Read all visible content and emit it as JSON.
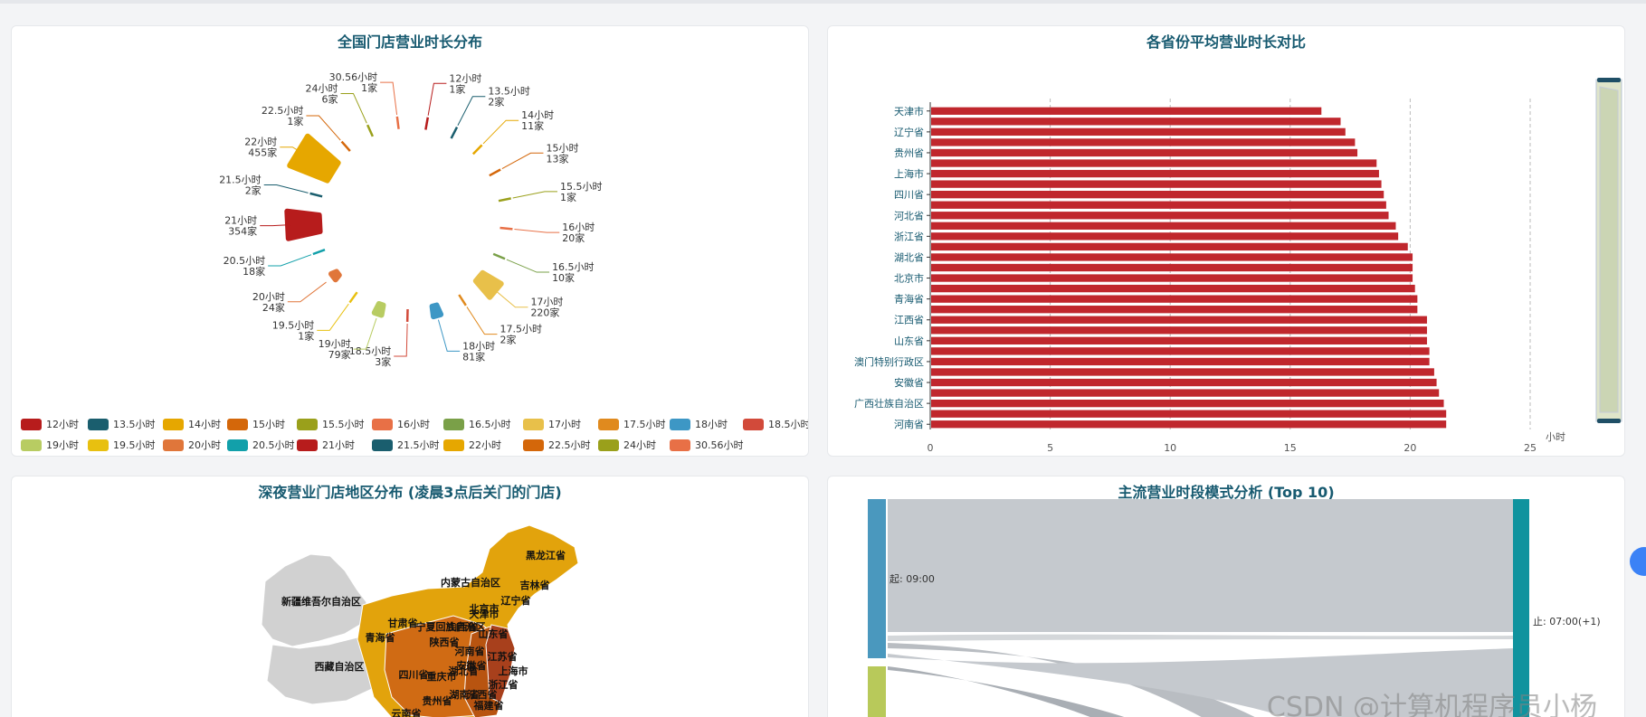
{
  "watermark": "CSDN @计算机程序员小杨",
  "charts": {
    "pie": {
      "title": "全国门店营业时长分布",
      "legend": [
        {
          "name": "12小时",
          "color": "#b71c1c"
        },
        {
          "name": "13.5小时",
          "color": "#1a5e6e"
        },
        {
          "name": "14小时",
          "color": "#e6a700"
        },
        {
          "name": "15小时",
          "color": "#d4670a"
        },
        {
          "name": "15.5小时",
          "color": "#9aa01b"
        },
        {
          "name": "16小时",
          "color": "#e87046"
        },
        {
          "name": "16.5小时",
          "color": "#7aa048"
        },
        {
          "name": "17小时",
          "color": "#e8c04a"
        },
        {
          "name": "17.5小时",
          "color": "#e08a1e"
        },
        {
          "name": "18小时",
          "color": "#3d97c5"
        },
        {
          "name": "18.5小时",
          "color": "#d24a3a"
        },
        {
          "name": "19小时",
          "color": "#b8cc62"
        },
        {
          "name": "19.5小时",
          "color": "#e8c010"
        },
        {
          "name": "20小时",
          "color": "#e0763a"
        },
        {
          "name": "20.5小时",
          "color": "#12a0aa"
        },
        {
          "name": "21小时",
          "color": "#b71c1c"
        },
        {
          "name": "21.5小时",
          "color": "#1a5e6e"
        },
        {
          "name": "22小时",
          "color": "#e6a700"
        },
        {
          "name": "22.5小时",
          "color": "#d4670a"
        },
        {
          "name": "24小时",
          "color": "#9aa01b"
        },
        {
          "name": "30.56小时",
          "color": "#e87046"
        }
      ],
      "labels": [
        {
          "name": "12小时",
          "count": "1家"
        },
        {
          "name": "13.5小时",
          "count": "2家"
        },
        {
          "name": "14小时",
          "count": "11家"
        },
        {
          "name": "15小时",
          "count": "13家"
        },
        {
          "name": "15.5小时",
          "count": "1家"
        },
        {
          "name": "16小时",
          "count": "20家"
        },
        {
          "name": "16.5小时",
          "count": "10家"
        },
        {
          "name": "17小时",
          "count": "220家"
        },
        {
          "name": "17.5小时",
          "count": "2家"
        },
        {
          "name": "18小时",
          "count": "81家"
        },
        {
          "name": "18.5小时",
          "count": "3家"
        },
        {
          "name": "19小时",
          "count": "79家"
        },
        {
          "name": "19.5小时",
          "count": "1家"
        },
        {
          "name": "20小时",
          "count": "24家"
        },
        {
          "name": "20.5小时",
          "count": "18家"
        },
        {
          "name": "21小时",
          "count": "354家"
        },
        {
          "name": "21.5小时",
          "count": "2家"
        },
        {
          "name": "22小时",
          "count": "455家"
        },
        {
          "name": "22.5小时",
          "count": "1家"
        },
        {
          "name": "24小时",
          "count": "6家"
        },
        {
          "name": "30.56小时",
          "count": "1家"
        }
      ]
    },
    "bar": {
      "title": "各省份平均营业时长对比",
      "unit": "小时",
      "color": "#c0272d"
    },
    "map": {
      "title": "深夜营业门店地区分布 (凌晨3点后关门的门店)",
      "regions": [
        {
          "name": "黑龙江省"
        },
        {
          "name": "内蒙古自治区"
        },
        {
          "name": "吉林省"
        },
        {
          "name": "新疆维吾尔自治区"
        },
        {
          "name": "辽宁省"
        },
        {
          "name": "北京市"
        },
        {
          "name": "天津市"
        },
        {
          "name": "甘肃省"
        },
        {
          "name": "宁夏回族自治区"
        },
        {
          "name": "山西省"
        },
        {
          "name": "青海省"
        },
        {
          "name": "山东省"
        },
        {
          "name": "陕西省"
        },
        {
          "name": "河南省"
        },
        {
          "name": "江苏省"
        },
        {
          "name": "西藏自治区"
        },
        {
          "name": "安徽省"
        },
        {
          "name": "上海市"
        },
        {
          "name": "四川省"
        },
        {
          "name": "湖北省"
        },
        {
          "name": "重庆市"
        },
        {
          "name": "浙江省"
        },
        {
          "name": "湖南省"
        },
        {
          "name": "江西省"
        },
        {
          "name": "贵州省"
        },
        {
          "name": "福建省"
        },
        {
          "name": "云南省"
        }
      ]
    },
    "sankey": {
      "title": "主流营业时段模式分析 (Top 10)",
      "nodes": [
        {
          "name": "起: 09:00",
          "color": "#4a98be"
        },
        {
          "name": "止: 07:00(+1)",
          "color": "#10939e"
        },
        {
          "name": "",
          "color": "#b8c95a"
        }
      ]
    }
  },
  "chart_data": [
    {
      "type": "pie",
      "title": "全国门店营业时长分布",
      "categories": [
        "12小时",
        "13.5小时",
        "14小时",
        "15小时",
        "15.5小时",
        "16小时",
        "16.5小时",
        "17小时",
        "17.5小时",
        "18小时",
        "18.5小时",
        "19小时",
        "19.5小时",
        "20小时",
        "20.5小时",
        "21小时",
        "21.5小时",
        "22小时",
        "22.5小时",
        "24小时",
        "30.56小时"
      ],
      "values": [
        1,
        2,
        11,
        13,
        1,
        20,
        10,
        220,
        2,
        81,
        3,
        79,
        1,
        24,
        18,
        354,
        2,
        455,
        1,
        6,
        1
      ],
      "legend": "bottom"
    },
    {
      "type": "bar",
      "orientation": "horizontal",
      "title": "各省份平均营业时长对比",
      "xlabel": "小时",
      "xlim": [
        0,
        25
      ],
      "xticks": [
        0,
        5,
        10,
        15,
        20,
        25
      ],
      "categories": [
        "天津市",
        "",
        "辽宁省",
        "",
        "贵州省",
        "",
        "上海市",
        "",
        "四川省",
        "",
        "河北省",
        "",
        "浙江省",
        "",
        "湖北省",
        "",
        "北京市",
        "",
        "青海省",
        "",
        "江西省",
        "",
        "山东省",
        "",
        "澳门特别行政区",
        "",
        "安徽省",
        "",
        "广西壮族自治区",
        "",
        "河南省"
      ],
      "values": [
        16.3,
        17.1,
        17.3,
        17.7,
        17.8,
        18.6,
        18.7,
        18.8,
        18.9,
        19.0,
        19.1,
        19.4,
        19.5,
        19.9,
        20.1,
        20.1,
        20.1,
        20.2,
        20.3,
        20.3,
        20.7,
        20.7,
        20.7,
        20.8,
        20.8,
        21.0,
        21.1,
        21.2,
        21.4,
        21.5,
        21.5
      ]
    },
    {
      "type": "map",
      "title": "深夜营业门店地区分布 (凌晨3点后关门的门店)"
    },
    {
      "type": "sankey",
      "title": "主流营业时段模式分析 (Top 10)",
      "nodes": [
        "起: 09:00",
        "止: 07:00(+1)"
      ]
    }
  ]
}
